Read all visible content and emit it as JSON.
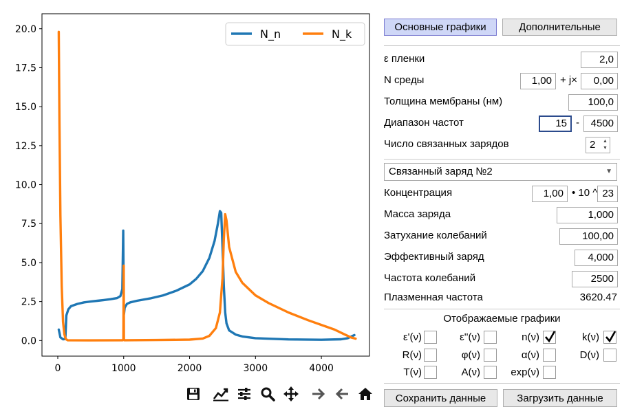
{
  "chart_data": {
    "type": "line",
    "title": "",
    "xlabel": "",
    "ylabel": "",
    "xlim": [
      -240,
      4730
    ],
    "ylim": [
      -1.0,
      20.96
    ],
    "x_ticks": [
      0,
      1000,
      2000,
      3000,
      4000
    ],
    "x_tick_labels": [
      "0",
      "1000",
      "2000",
      "3000",
      "4000"
    ],
    "y_ticks": [
      0,
      2.5,
      5,
      7.5,
      10,
      12.5,
      15,
      17.5,
      20
    ],
    "y_tick_labels": [
      "0.0",
      "2.5",
      "5.0",
      "7.5",
      "10.0",
      "12.5",
      "15.0",
      "17.5",
      "20.0"
    ],
    "legend": "top-right",
    "grid": false,
    "series": [
      {
        "name": "N_n",
        "color": "#1f77b4",
        "points": [
          [
            15,
            0.7
          ],
          [
            40,
            0.2
          ],
          [
            80,
            0.08
          ],
          [
            115,
            0.1
          ],
          [
            130,
            1.6
          ],
          [
            160,
            2.0
          ],
          [
            200,
            2.2
          ],
          [
            300,
            2.35
          ],
          [
            400,
            2.45
          ],
          [
            500,
            2.5
          ],
          [
            600,
            2.55
          ],
          [
            700,
            2.6
          ],
          [
            800,
            2.65
          ],
          [
            900,
            2.72
          ],
          [
            950,
            2.85
          ],
          [
            980,
            3.3
          ],
          [
            993,
            7.05
          ],
          [
            997,
            4.5
          ],
          [
            1000,
            2.3
          ],
          [
            1005,
            1.7
          ],
          [
            1015,
            2.1
          ],
          [
            1050,
            2.35
          ],
          [
            1100,
            2.45
          ],
          [
            1200,
            2.55
          ],
          [
            1400,
            2.7
          ],
          [
            1600,
            2.9
          ],
          [
            1800,
            3.2
          ],
          [
            2000,
            3.6
          ],
          [
            2100,
            3.95
          ],
          [
            2200,
            4.45
          ],
          [
            2300,
            5.3
          ],
          [
            2380,
            6.4
          ],
          [
            2430,
            7.5
          ],
          [
            2460,
            8.3
          ],
          [
            2480,
            8.2
          ],
          [
            2500,
            6.0
          ],
          [
            2520,
            3.5
          ],
          [
            2540,
            1.8
          ],
          [
            2560,
            1.1
          ],
          [
            2600,
            0.65
          ],
          [
            2700,
            0.38
          ],
          [
            2800,
            0.26
          ],
          [
            3000,
            0.15
          ],
          [
            3500,
            0.07
          ],
          [
            4000,
            0.05
          ],
          [
            4300,
            0.08
          ],
          [
            4400,
            0.15
          ],
          [
            4500,
            0.35
          ]
        ]
      },
      {
        "name": "N_k",
        "color": "#ff7f0e",
        "points": [
          [
            15,
            19.8
          ],
          [
            25,
            14.0
          ],
          [
            40,
            8.0
          ],
          [
            60,
            3.5
          ],
          [
            80,
            1.2
          ],
          [
            100,
            0.4
          ],
          [
            120,
            0.1
          ],
          [
            150,
            0.02
          ],
          [
            500,
            0.01
          ],
          [
            950,
            0.02
          ],
          [
            985,
            0.02
          ],
          [
            995,
            0.1
          ],
          [
            1000,
            4.8
          ],
          [
            1004,
            0.1
          ],
          [
            1010,
            0.02
          ],
          [
            1500,
            0.03
          ],
          [
            2000,
            0.06
          ],
          [
            2200,
            0.13
          ],
          [
            2300,
            0.3
          ],
          [
            2400,
            0.8
          ],
          [
            2460,
            1.8
          ],
          [
            2500,
            4.0
          ],
          [
            2520,
            6.5
          ],
          [
            2540,
            8.1
          ],
          [
            2560,
            7.7
          ],
          [
            2600,
            6.0
          ],
          [
            2700,
            4.4
          ],
          [
            2800,
            3.7
          ],
          [
            3000,
            2.9
          ],
          [
            3200,
            2.4
          ],
          [
            3500,
            1.8
          ],
          [
            3800,
            1.3
          ],
          [
            4000,
            1.0
          ],
          [
            4200,
            0.7
          ],
          [
            4350,
            0.4
          ],
          [
            4450,
            0.2
          ],
          [
            4520,
            0.12
          ]
        ]
      }
    ]
  },
  "toolbar": {
    "icons": [
      "save-icon",
      "edit-curves-icon",
      "configure-subplots-icon",
      "zoom-icon",
      "pan-icon",
      "forward-icon",
      "back-icon",
      "home-icon"
    ]
  },
  "panel": {
    "tab_main": "Основные графики",
    "tab_extra": "Дополнительные",
    "eps_label": "ε пленки",
    "eps_value": "2,0",
    "n_label": "N среды",
    "n_real": "1,00",
    "n_sep": "+ j×",
    "n_imag": "0,00",
    "thickness_label": "Толщина мембраны (нм)",
    "thickness_value": "100,0",
    "range_label": "Диапазон частот",
    "range_from": "15",
    "range_sep": "-",
    "range_to": "4500",
    "charges_label": "Число связанных зарядов",
    "charges_value": "2",
    "charge_select": "Связанный заряд №2",
    "conc_label": "Концентрация",
    "conc_value": "1,00",
    "conc_sep": "• 10 ^",
    "conc_exp": "23",
    "mass_label": "Масса заряда",
    "mass_value": "1,000",
    "damping_label": "Затухание колебаний",
    "damping_value": "100,00",
    "eff_label": "Эффективный заряд",
    "eff_value": "4,000",
    "freq_label": "Частота колебаний",
    "freq_value": "2500",
    "plasma_label": "Плазменная частота",
    "plasma_value": "3620.47",
    "checks_title": "Отображаемые графики",
    "checks": [
      {
        "label": "ε'(ν)",
        "checked": false
      },
      {
        "label": "ε''(ν)",
        "checked": false
      },
      {
        "label": "n(ν)",
        "checked": true
      },
      {
        "label": "k(ν)",
        "checked": true
      },
      {
        "label": "R(ν)",
        "checked": false
      },
      {
        "label": "φ(ν)",
        "checked": false
      },
      {
        "label": "α(ν)",
        "checked": false
      },
      {
        "label": "D(ν)",
        "checked": false
      },
      {
        "label": "T(ν)",
        "checked": false
      },
      {
        "label": "A(ν)",
        "checked": false
      },
      {
        "label": "exp(ν)",
        "checked": false
      }
    ],
    "save_button": "Сохранить данные",
    "load_button": "Загрузить данные"
  }
}
